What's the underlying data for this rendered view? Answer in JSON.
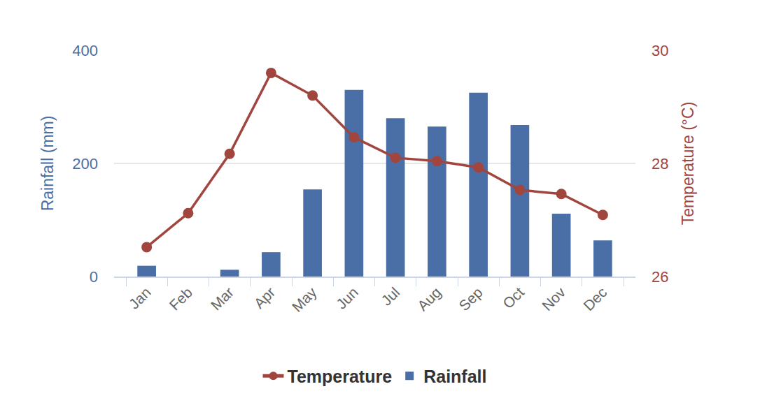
{
  "chart_data": {
    "type": "bar",
    "categories": [
      "Jan",
      "Feb",
      "Mar",
      "Apr",
      "May",
      "Jun",
      "Jul",
      "Aug",
      "Sep",
      "Oct",
      "Nov",
      "Dec"
    ],
    "series": [
      {
        "name": "Temperature",
        "type": "line",
        "axis": "y2",
        "color": "#a0463f",
        "marker": "circle",
        "values": [
          26.52,
          27.12,
          28.17,
          29.6,
          29.2,
          28.46,
          28.1,
          28.04,
          27.93,
          27.53,
          27.46,
          27.09
        ]
      },
      {
        "name": "Rainfall",
        "type": "bar",
        "color": "#4a6fa7",
        "values": [
          19,
          0,
          12,
          43,
          154,
          330,
          280,
          265,
          325,
          268,
          111,
          64
        ]
      }
    ],
    "ylabel": "Rainfall (mm)",
    "y2label": "Temperature (°C)",
    "ylim": [
      0,
      400
    ],
    "yticks": [
      0,
      200,
      400
    ],
    "y2lim": [
      26,
      30
    ],
    "y2ticks": [
      26,
      28,
      30
    ],
    "grid": true,
    "legend": "bottom"
  }
}
